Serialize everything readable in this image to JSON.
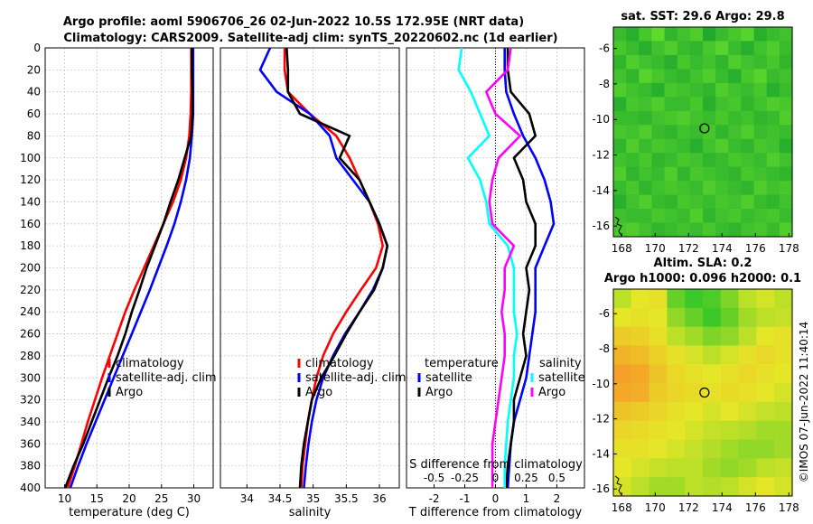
{
  "header": {
    "title_line1": "Argo profile: aoml 5906706_26 02-Jun-2022 10.5S 172.95E (NRT data)",
    "title_line2": "Climatology: CARS2009. Satellite-adj clim: synTS_20220602.nc (1d earlier)"
  },
  "copyright": "©IMOS 07-Jun-2022 11:40:14",
  "colors": {
    "climatology": "#ff0000",
    "satellite": "#0000ff",
    "argo": "#000000",
    "argo_s": "#ff00ff",
    "sat_s": "#00ffff"
  },
  "chart_data": [
    {
      "type": "line",
      "name": "temperature",
      "xlabel": "temperature (deg C)",
      "xlim": [
        7,
        33
      ],
      "ylim": [
        400,
        0
      ],
      "xticks": [
        10,
        15,
        20,
        25,
        30
      ],
      "yticks": [
        0,
        20,
        40,
        60,
        80,
        100,
        120,
        140,
        160,
        180,
        200,
        220,
        240,
        260,
        280,
        300,
        320,
        340,
        360,
        380,
        400
      ],
      "legend": [
        "climatology",
        "satellite-adj. clim",
        "Argo"
      ],
      "series": [
        {
          "name": "climatology",
          "color": "#ff0000",
          "x": [
            29.6,
            29.6,
            29.6,
            29.5,
            29.3,
            28.8,
            28.0,
            26.8,
            25.3,
            23.8,
            22.3,
            20.8,
            19.4,
            18.2,
            17.0,
            15.8,
            14.7,
            13.6,
            12.6,
            11.6,
            10.5
          ],
          "y": [
            0,
            20,
            40,
            60,
            80,
            100,
            120,
            140,
            160,
            180,
            200,
            220,
            240,
            260,
            280,
            300,
            320,
            340,
            360,
            380,
            400
          ]
        },
        {
          "name": "satellite-adj. clim",
          "color": "#0000ff",
          "x": [
            29.9,
            29.9,
            29.9,
            29.9,
            29.7,
            29.4,
            28.8,
            28.0,
            27.0,
            25.8,
            24.5,
            23.2,
            21.8,
            20.4,
            19.0,
            17.6,
            16.2,
            14.8,
            13.4,
            12.1,
            10.9
          ],
          "y": [
            0,
            20,
            40,
            60,
            80,
            100,
            120,
            140,
            160,
            180,
            200,
            220,
            240,
            260,
            280,
            300,
            320,
            340,
            360,
            380,
            400
          ]
        },
        {
          "name": "Argo",
          "color": "#000000",
          "x": [
            29.7,
            29.7,
            29.8,
            29.8,
            29.6,
            28.6,
            27.6,
            26.4,
            25.3,
            24.0,
            22.7,
            21.6,
            20.4,
            19.4,
            18.2,
            16.8,
            15.5,
            14.2,
            12.9,
            11.4,
            10.1
          ],
          "y": [
            0,
            20,
            40,
            60,
            80,
            100,
            120,
            140,
            160,
            180,
            200,
            220,
            240,
            260,
            280,
            300,
            320,
            340,
            360,
            380,
            400
          ]
        }
      ]
    },
    {
      "type": "line",
      "name": "salinity",
      "xlabel": "salinity",
      "xlim": [
        33.6,
        36.3
      ],
      "ylim": [
        400,
        0
      ],
      "xticks": [
        34,
        34.5,
        35,
        35.5,
        36
      ],
      "xticklabels": [
        "34",
        "34.5",
        "35",
        "35.5",
        "36"
      ],
      "legend": [
        "climatology",
        "satellite-adj. clim",
        "Argo"
      ],
      "series": [
        {
          "name": "climatology",
          "color": "#ff0000",
          "x": [
            34.57,
            34.57,
            34.62,
            34.95,
            35.35,
            35.55,
            35.7,
            35.85,
            35.98,
            36.05,
            35.95,
            35.72,
            35.5,
            35.3,
            35.15,
            35.05,
            34.98,
            34.92,
            34.88,
            34.84,
            34.82
          ],
          "y": [
            0,
            20,
            40,
            60,
            80,
            100,
            120,
            140,
            160,
            180,
            200,
            220,
            240,
            260,
            280,
            300,
            320,
            340,
            360,
            380,
            400
          ]
        },
        {
          "name": "satellite-adj. clim",
          "color": "#0000ff",
          "x": [
            34.35,
            34.2,
            34.45,
            34.95,
            35.25,
            35.35,
            35.6,
            35.85,
            36.0,
            36.12,
            36.05,
            35.9,
            35.7,
            35.48,
            35.3,
            35.15,
            35.05,
            34.98,
            34.93,
            34.89,
            34.86
          ],
          "y": [
            0,
            20,
            40,
            60,
            80,
            100,
            120,
            140,
            160,
            180,
            200,
            220,
            240,
            260,
            280,
            300,
            320,
            340,
            360,
            380,
            400
          ]
        },
        {
          "name": "Argo",
          "color": "#000000",
          "x": [
            34.6,
            34.62,
            34.62,
            34.8,
            35.55,
            35.4,
            35.7,
            35.85,
            36.0,
            36.12,
            36.05,
            35.92,
            35.7,
            35.5,
            35.32,
            35.12,
            34.98,
            34.92,
            34.86,
            34.82,
            34.8
          ],
          "y": [
            0,
            20,
            40,
            60,
            80,
            100,
            120,
            140,
            160,
            180,
            200,
            220,
            240,
            260,
            280,
            300,
            320,
            340,
            360,
            380,
            400
          ]
        }
      ]
    },
    {
      "type": "line",
      "name": "differences",
      "xlabel": "T difference from climatology",
      "top_label": "S difference from climatology",
      "xlim": [
        -2.9,
        2.9
      ],
      "ylim": [
        400,
        0
      ],
      "xticks": [
        -2,
        -1,
        0,
        1,
        2
      ],
      "s_ticklabels": [
        "-0.5",
        "-0.25",
        "0",
        "0.25",
        "0.5"
      ],
      "s_scale": 4,
      "legend_left_title": "temperature",
      "legend_right_title": "salinity",
      "legend_left": [
        "satellite",
        "Argo"
      ],
      "legend_right": [
        "satellite",
        "Argo"
      ],
      "series": [
        {
          "name": "T satellite",
          "color": "#0000ff",
          "x": [
            0.3,
            0.3,
            0.35,
            0.6,
            0.9,
            1.3,
            1.6,
            1.8,
            1.9,
            1.6,
            1.3,
            1.3,
            1.3,
            1.2,
            1.1,
            1.0,
            0.8,
            0.6,
            0.5,
            0.45,
            0.4
          ],
          "y": [
            0,
            20,
            40,
            60,
            80,
            100,
            120,
            140,
            160,
            180,
            200,
            220,
            240,
            260,
            280,
            300,
            320,
            340,
            360,
            380,
            400
          ]
        },
        {
          "name": "T Argo",
          "color": "#000000",
          "x": [
            0.4,
            0.4,
            0.5,
            1.1,
            1.3,
            0.6,
            0.9,
            1.0,
            1.3,
            1.3,
            1.0,
            1.1,
            1.0,
            0.9,
            1.0,
            0.8,
            0.6,
            0.6,
            0.5,
            0.4,
            0.35
          ],
          "y": [
            0,
            20,
            40,
            60,
            80,
            100,
            120,
            140,
            160,
            180,
            200,
            220,
            240,
            260,
            280,
            300,
            320,
            340,
            360,
            380,
            400
          ]
        },
        {
          "name": "S satellite",
          "color": "#00ffff",
          "x": [
            -1.1,
            -1.2,
            -0.8,
            -0.5,
            -0.2,
            -0.9,
            -0.5,
            -0.3,
            -0.2,
            0.4,
            0.6,
            0.6,
            0.6,
            0.7,
            0.6,
            0.6,
            0.5,
            0.4,
            0.35,
            0.3,
            0.3
          ],
          "y": [
            0,
            20,
            40,
            60,
            80,
            100,
            120,
            140,
            160,
            180,
            200,
            220,
            240,
            260,
            280,
            300,
            320,
            340,
            360,
            380,
            400
          ]
        },
        {
          "name": "S Argo",
          "color": "#ff00ff",
          "x": [
            0.5,
            0.4,
            -0.3,
            0.0,
            0.8,
            0.1,
            -0.1,
            -0.2,
            -0.1,
            0.6,
            0.3,
            0.3,
            0.2,
            0.3,
            0.3,
            0.2,
            0.1,
            0.0,
            -0.1,
            -0.1,
            -0.1
          ],
          "y": [
            0,
            20,
            40,
            60,
            80,
            100,
            120,
            140,
            160,
            180,
            200,
            220,
            240,
            260,
            280,
            300,
            320,
            340,
            360,
            380,
            400
          ]
        }
      ]
    },
    {
      "type": "heatmap",
      "name": "sst_map",
      "title": "sat. SST: 29.6 Argo: 29.8",
      "xlim": [
        167.5,
        178.2
      ],
      "ylim": [
        -16.6,
        -4.8
      ],
      "xticks": [
        168,
        170,
        172,
        174,
        176,
        178
      ],
      "yticks": [
        -6,
        -8,
        -10,
        -12,
        -14,
        -16
      ],
      "marker": {
        "lon": 172.95,
        "lat": -10.5
      },
      "grid": {
        "cols": 14,
        "rows": 15,
        "values": [
          [
            60,
            58,
            62,
            65,
            59,
            61,
            63,
            57,
            60,
            62,
            64,
            58,
            60,
            61
          ],
          [
            62,
            60,
            58,
            61,
            63,
            60,
            59,
            62,
            64,
            60,
            58,
            61,
            63,
            60
          ],
          [
            59,
            63,
            61,
            60,
            58,
            62,
            60,
            61,
            59,
            63,
            61,
            60,
            62,
            59
          ],
          [
            61,
            59,
            64,
            62,
            60,
            59,
            61,
            63,
            60,
            58,
            62,
            64,
            60,
            61
          ],
          [
            63,
            61,
            60,
            58,
            62,
            61,
            60,
            59,
            63,
            61,
            60,
            62,
            58,
            60
          ],
          [
            58,
            62,
            61,
            63,
            60,
            60,
            62,
            58,
            61,
            62,
            59,
            61,
            63,
            62
          ],
          [
            60,
            60,
            59,
            61,
            62,
            63,
            61,
            60,
            62,
            60,
            61,
            59,
            60,
            63
          ],
          [
            62,
            61,
            63,
            60,
            59,
            61,
            60,
            62,
            59,
            61,
            63,
            60,
            61,
            60
          ],
          [
            59,
            63,
            60,
            62,
            61,
            60,
            58,
            61,
            63,
            60,
            59,
            62,
            61,
            58
          ],
          [
            61,
            60,
            62,
            59,
            60,
            62,
            61,
            59,
            60,
            62,
            61,
            60,
            63,
            61
          ],
          [
            63,
            59,
            61,
            60,
            63,
            59,
            62,
            61,
            60,
            59,
            62,
            61,
            60,
            59
          ],
          [
            60,
            62,
            59,
            61,
            62,
            61,
            60,
            63,
            61,
            60,
            59,
            63,
            61,
            62
          ],
          [
            58,
            61,
            63,
            60,
            59,
            62,
            61,
            60,
            62,
            61,
            63,
            60,
            59,
            61
          ],
          [
            61,
            60,
            60,
            62,
            61,
            60,
            63,
            59,
            61,
            62,
            60,
            61,
            62,
            60
          ],
          [
            62,
            63,
            61,
            59,
            60,
            61,
            60,
            62,
            60,
            59,
            61,
            62,
            60,
            63
          ]
        ]
      }
    },
    {
      "type": "heatmap",
      "name": "sla_map",
      "title_line1": "Altim. SLA: 0.2",
      "title_line2": "Argo h1000: 0.096 h2000: 0.1",
      "xlim": [
        167.5,
        178.2
      ],
      "ylim": [
        -16.4,
        -4.6
      ],
      "xticks": [
        168,
        170,
        172,
        174,
        176,
        178
      ],
      "yticks": [
        -6,
        -8,
        -10,
        -12,
        -14,
        -16
      ],
      "marker": {
        "lon": 172.95,
        "lat": -10.5
      },
      "grid": {
        "cols": 10,
        "rows": 11,
        "values": [
          [
            0.55,
            0.6,
            0.62,
            0.45,
            0.4,
            0.42,
            0.48,
            0.55,
            0.58,
            0.55
          ],
          [
            0.6,
            0.62,
            0.6,
            0.5,
            0.45,
            0.4,
            0.45,
            0.52,
            0.55,
            0.56
          ],
          [
            0.7,
            0.68,
            0.62,
            0.55,
            0.52,
            0.48,
            0.5,
            0.55,
            0.6,
            0.62
          ],
          [
            0.78,
            0.75,
            0.68,
            0.62,
            0.58,
            0.55,
            0.58,
            0.62,
            0.65,
            0.62
          ],
          [
            0.85,
            0.82,
            0.72,
            0.65,
            0.62,
            0.6,
            0.62,
            0.65,
            0.62,
            0.6
          ],
          [
            0.82,
            0.8,
            0.7,
            0.66,
            0.64,
            0.62,
            0.64,
            0.62,
            0.6,
            0.58
          ],
          [
            0.72,
            0.7,
            0.66,
            0.62,
            0.6,
            0.58,
            0.6,
            0.58,
            0.56,
            0.55
          ],
          [
            0.66,
            0.64,
            0.62,
            0.6,
            0.58,
            0.56,
            0.55,
            0.54,
            0.52,
            0.52
          ],
          [
            0.62,
            0.62,
            0.6,
            0.58,
            0.56,
            0.54,
            0.52,
            0.5,
            0.5,
            0.52
          ],
          [
            0.6,
            0.58,
            0.56,
            0.55,
            0.55,
            0.52,
            0.5,
            0.52,
            0.55,
            0.56
          ],
          [
            0.58,
            0.55,
            0.52,
            0.52,
            0.55,
            0.54,
            0.55,
            0.58,
            0.6,
            0.58
          ]
        ]
      }
    }
  ]
}
